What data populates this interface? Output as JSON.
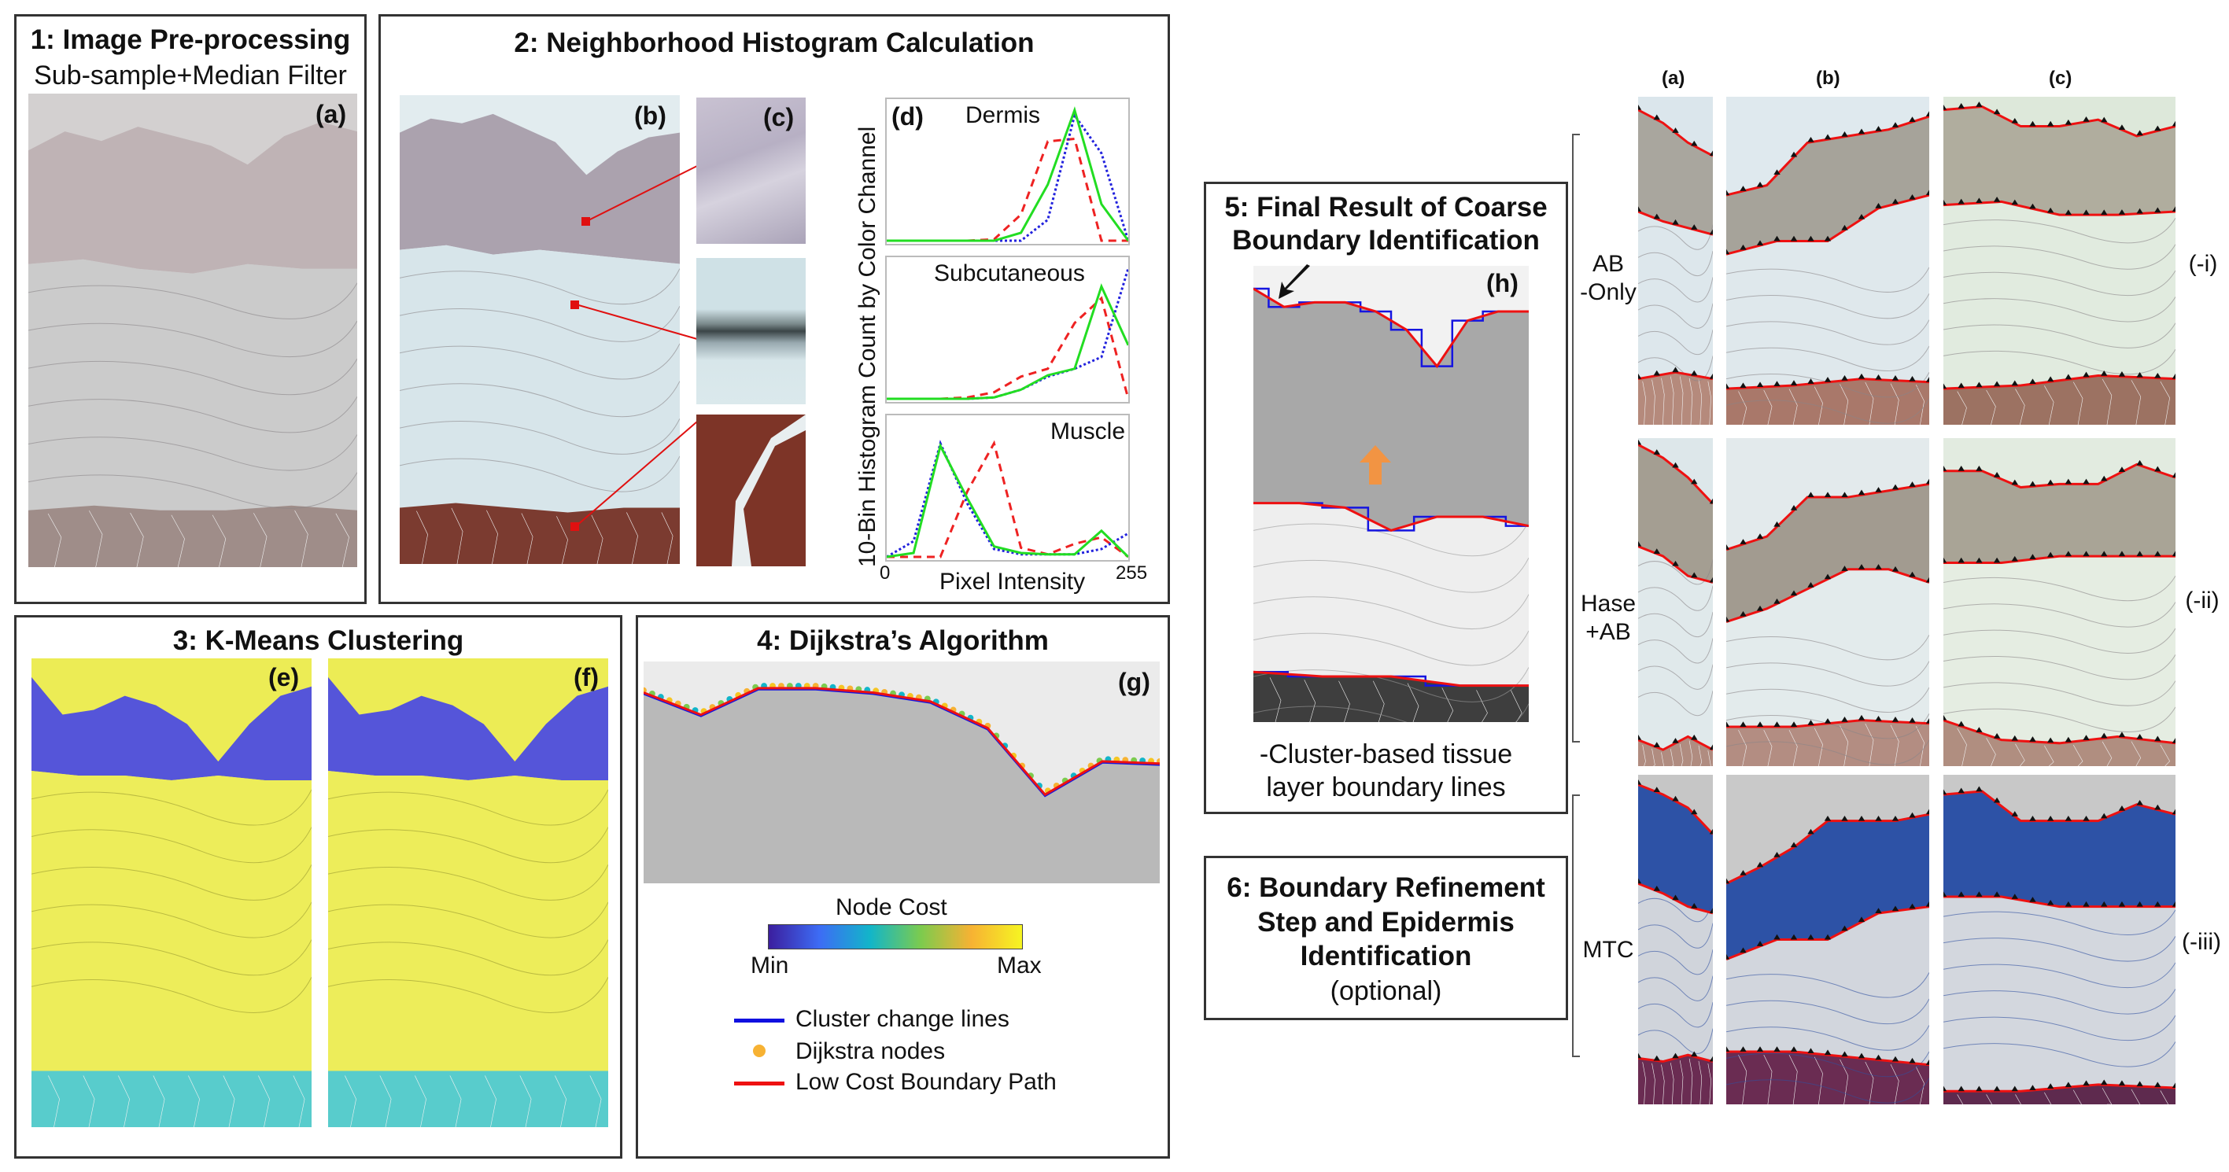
{
  "panel1": {
    "title": "1: Image Pre-processing",
    "subtitle": "Sub-sample+Median Filter",
    "tag": "(a)"
  },
  "panel2": {
    "title": "2: Neighborhood Histogram Calculation",
    "tag_b": "(b)",
    "tag_c": "(c)",
    "tag_d": "(d)"
  },
  "panel3": {
    "title": "3: K-Means Clustering",
    "tag_e": "(e)",
    "tag_f": "(f)"
  },
  "panel4": {
    "title": "4: Dijkstra’s Algorithm",
    "tag": "(g)",
    "colorbar": {
      "title": "Node Cost",
      "min_label": "Min",
      "max_label": "Max",
      "colors": [
        "#3b1e9e",
        "#3d6cf5",
        "#12b5c9",
        "#7ccb4e",
        "#f7b233",
        "#f6f522"
      ]
    },
    "legend": [
      {
        "label": "Cluster change lines",
        "color": "#1010e0",
        "kind": "line"
      },
      {
        "label": "Dijkstra nodes",
        "color": "#f7b233",
        "kind": "dot"
      },
      {
        "label": "Low Cost Boundary Path",
        "color": "#ee1111",
        "kind": "line"
      }
    ]
  },
  "panel5": {
    "title_line1": "5: Final Result of Coarse",
    "title_line2": "Boundary Identification",
    "tag": "(h)",
    "caption_line1": "-Cluster-based tissue",
    "caption_line2": "layer boundary lines"
  },
  "panel6": {
    "line1": "6: Boundary Refinement",
    "line2": "Step and Epidermis",
    "line3": "Identification",
    "line4": "(optional)"
  },
  "results_grid": {
    "columns": [
      "(a)",
      "(b)",
      "(c)"
    ],
    "rows": [
      {
        "label_line1": "AB",
        "label_line2": "-Only",
        "id": "(-i)"
      },
      {
        "label_line1": "Hase",
        "label_line2": "+AB",
        "id": "(-ii)"
      },
      {
        "label_line1": "MTC",
        "label_line2": "",
        "id": "(-iii)"
      }
    ]
  },
  "chart_data": {
    "type": "line",
    "ylabel": "10-Bin Histogram Count by Color Channel",
    "xlabel": "Pixel Intensity",
    "x_tick_labels": [
      "0",
      "255"
    ],
    "xlim": [
      0,
      255
    ],
    "bins": 10,
    "series_styles": {
      "red": {
        "color": "#ee2222",
        "dash": "dashed"
      },
      "green": {
        "color": "#22dd22",
        "dash": "solid"
      },
      "blue": {
        "color": "#2222dd",
        "dash": "dotted"
      }
    },
    "subplots": [
      {
        "title": "Dermis",
        "red": [
          0,
          0,
          0,
          0,
          0.01,
          0.2,
          0.76,
          0.78,
          0,
          0
        ],
        "green": [
          0,
          0,
          0,
          0,
          0,
          0.06,
          0.43,
          1.0,
          0.28,
          0
        ],
        "blue": [
          0,
          0,
          0,
          0,
          0,
          0,
          0.16,
          0.96,
          0.67,
          0
        ]
      },
      {
        "title": "Subcutaneous",
        "red": [
          0,
          0,
          0,
          0.01,
          0.05,
          0.17,
          0.23,
          0.58,
          0.77,
          0
        ],
        "green": [
          0,
          0,
          0,
          0,
          0.01,
          0.07,
          0.18,
          0.23,
          0.86,
          0.41
        ],
        "blue": [
          0,
          0,
          0,
          0,
          0.01,
          0.07,
          0.17,
          0.23,
          0.32,
          1.0
        ]
      },
      {
        "title": "Muscle",
        "red": [
          0,
          0,
          0,
          0.5,
          0.87,
          0.07,
          0.02,
          0.1,
          0.15,
          0
        ],
        "green": [
          0,
          0.03,
          0.85,
          0.45,
          0.08,
          0.03,
          0.02,
          0.02,
          0.2,
          0
        ],
        "blue": [
          0,
          0.12,
          0.87,
          0.41,
          0.06,
          0.02,
          0.02,
          0.02,
          0.06,
          0.18
        ]
      }
    ]
  }
}
